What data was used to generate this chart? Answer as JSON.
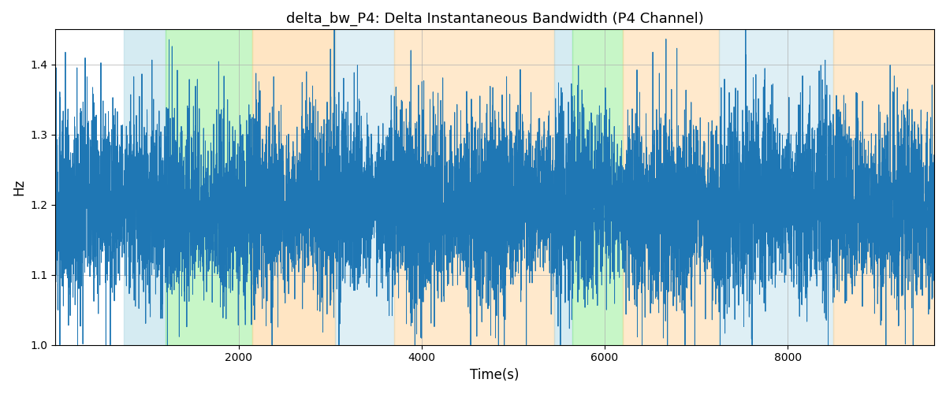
{
  "title": "delta_bw_P4: Delta Instantaneous Bandwidth (P4 Channel)",
  "xlabel": "Time(s)",
  "ylabel": "Hz",
  "xlim": [
    0,
    9600
  ],
  "ylim": [
    1.0,
    1.45
  ],
  "yticks": [
    1.0,
    1.1,
    1.2,
    1.3,
    1.4
  ],
  "xticks": [
    2000,
    4000,
    6000,
    8000
  ],
  "line_color": "#1f77b4",
  "line_width": 0.7,
  "seed": 12,
  "n_points": 9600,
  "signal_mean": 1.2,
  "signal_base_std": 0.04,
  "background_color": "#ffffff",
  "grid_color": "#b0b0b0",
  "bands": [
    {
      "xmin": 750,
      "xmax": 1200,
      "color": "#add8e6",
      "alpha": 0.5
    },
    {
      "xmin": 1200,
      "xmax": 2150,
      "color": "#90ee90",
      "alpha": 0.5
    },
    {
      "xmin": 2150,
      "xmax": 3050,
      "color": "#ffd59b",
      "alpha": 0.6
    },
    {
      "xmin": 3050,
      "xmax": 3700,
      "color": "#add8e6",
      "alpha": 0.4
    },
    {
      "xmin": 3700,
      "xmax": 5450,
      "color": "#ffd59b",
      "alpha": 0.5
    },
    {
      "xmin": 5450,
      "xmax": 5650,
      "color": "#add8e6",
      "alpha": 0.5
    },
    {
      "xmin": 5650,
      "xmax": 6200,
      "color": "#90ee90",
      "alpha": 0.5
    },
    {
      "xmin": 6200,
      "xmax": 7250,
      "color": "#ffd59b",
      "alpha": 0.5
    },
    {
      "xmin": 7250,
      "xmax": 8500,
      "color": "#add8e6",
      "alpha": 0.4
    },
    {
      "xmin": 8500,
      "xmax": 9600,
      "color": "#ffd59b",
      "alpha": 0.5
    }
  ]
}
